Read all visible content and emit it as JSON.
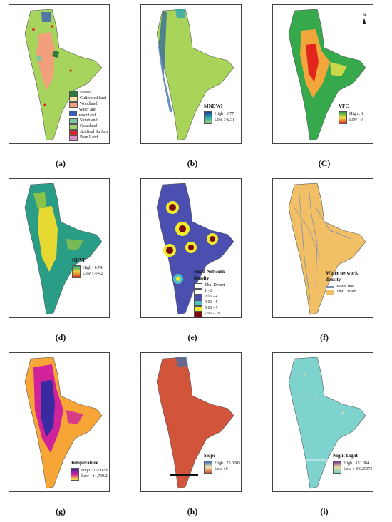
{
  "panels": [
    {
      "id": "a",
      "caption": "(a)",
      "type": "land-use",
      "legend": {
        "title": "",
        "classes": [
          {
            "label": "Forest",
            "color": "#2f7a3a"
          },
          {
            "label": "Cultivated land",
            "color": "#f3e9a5"
          },
          {
            "label": "Woodland",
            "color": "#f2a07b"
          },
          {
            "label": "Water and woodland",
            "color": "#3b5fb5"
          },
          {
            "label": "Shrubland",
            "color": "#7ec7a3"
          },
          {
            "label": "Grassland",
            "color": "#9ed36a"
          },
          {
            "label": "Artifical Surface",
            "color": "#d7262b"
          },
          {
            "label": "Bare Land",
            "color": "#d98ec7"
          }
        ]
      }
    },
    {
      "id": "b",
      "caption": "(b)",
      "type": "ramp",
      "legend": {
        "title": "MNDWI",
        "high": "High : 0.77",
        "low": "Low : -0.51",
        "colors": [
          "#1d3f8a",
          "#2ea7b3",
          "#a3d46a"
        ]
      }
    },
    {
      "id": "c",
      "caption": "(C)",
      "type": "ramp",
      "legend": {
        "title": "VFC",
        "high": "High : 1",
        "low": "Low : 0",
        "colors": [
          "#2c9a46",
          "#f3e14a",
          "#e0261d"
        ]
      }
    },
    {
      "id": "d",
      "caption": "(d)",
      "type": "ramp",
      "legend": {
        "title": "NDVI",
        "high": "High : 0.74",
        "low": "Low : -0.42",
        "colors": [
          "#1f9a7a",
          "#e7d832",
          "#e2231f"
        ]
      }
    },
    {
      "id": "e",
      "caption": "(e)",
      "type": "road-density",
      "legend": {
        "title": "Road Network density",
        "classes": [
          {
            "label": "Thal Desert",
            "color": "#ffffff"
          },
          {
            "label": "1 - 2",
            "color": "#ffffff"
          },
          {
            "label": "2.01 - 4",
            "color": "#4b4fb0"
          },
          {
            "label": "4.01 - 5",
            "color": "#4fc0c7"
          },
          {
            "label": "5.01 - 7",
            "color": "#f1ea2a"
          },
          {
            "label": "7.01 - 29",
            "color": "#7a0a12"
          }
        ]
      }
    },
    {
      "id": "f",
      "caption": "(f)",
      "type": "water-network",
      "legend": {
        "title": "Water network density",
        "classes": [
          {
            "label": "Water line",
            "color": "#7f8fb0"
          },
          {
            "label": "Thal Desert",
            "color": "#f1bf66"
          }
        ]
      }
    },
    {
      "id": "g",
      "caption": "(g)",
      "type": "ramp",
      "legend": {
        "title": "Temperature",
        "high": "High : 15,502.6",
        "low": "Low : 14,739.2",
        "colors": [
          "#3a2aa0",
          "#d0229b",
          "#f7e545"
        ]
      }
    },
    {
      "id": "h",
      "caption": "(h)",
      "type": "ramp",
      "legend": {
        "title": "Slope",
        "high": "High : 75.0205",
        "low": "Low : 0",
        "colors": [
          "#3b6fb0",
          "#f1e4b2",
          "#d2553b"
        ]
      }
    },
    {
      "id": "i",
      "caption": "(i)",
      "type": "ramp",
      "legend": {
        "title": "Night Light",
        "high": "High : 151.384",
        "low": "Low : -0.025073",
        "colors": [
          "#6b3a8a",
          "#e9d7a0",
          "#7fd3cf"
        ]
      }
    }
  ],
  "colors": {
    "grass": "#a6d45c",
    "mndwi": "#a9d45a",
    "vfc_high": "#35a94b",
    "ndvi": "#2a9d86",
    "road_fill": "#4b4fb0",
    "water_fill": "#f1bf66",
    "temp_core": "#3a2aa0",
    "slope": "#d2553b",
    "night": "#7fd3cf"
  }
}
